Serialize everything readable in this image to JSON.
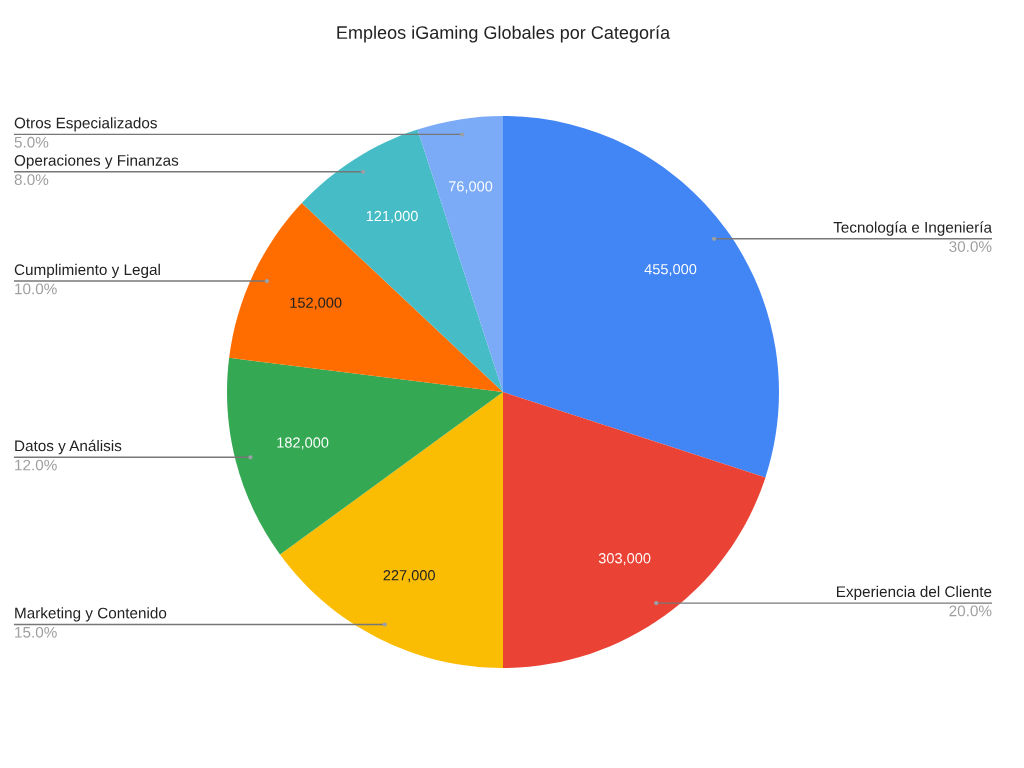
{
  "chart_data": {
    "type": "pie",
    "title": "Empleos iGaming Globales por Categoría",
    "categories": [
      "Tecnología e Ingeniería",
      "Experiencia del Cliente",
      "Marketing y Contenido",
      "Datos y Análisis",
      "Cumplimiento y Legal",
      "Operaciones y Finanzas",
      "Otros Especializados"
    ],
    "values": [
      455000,
      303000,
      227000,
      182000,
      152000,
      121000,
      76000
    ],
    "colors": [
      "#4285f4",
      "#ea4335",
      "#fbbc04",
      "#34a853",
      "#ff6d01",
      "#46bdc6",
      "#7baaf7"
    ],
    "value_labels": [
      "455,000",
      "303,000",
      "227,000",
      "182,000",
      "152,000",
      "121,000",
      "76,000"
    ],
    "annotations": [
      "30.0%",
      "20.0%",
      "15.0%",
      "12.0%",
      "10.0%",
      "8.0%",
      "5.0%"
    ]
  }
}
